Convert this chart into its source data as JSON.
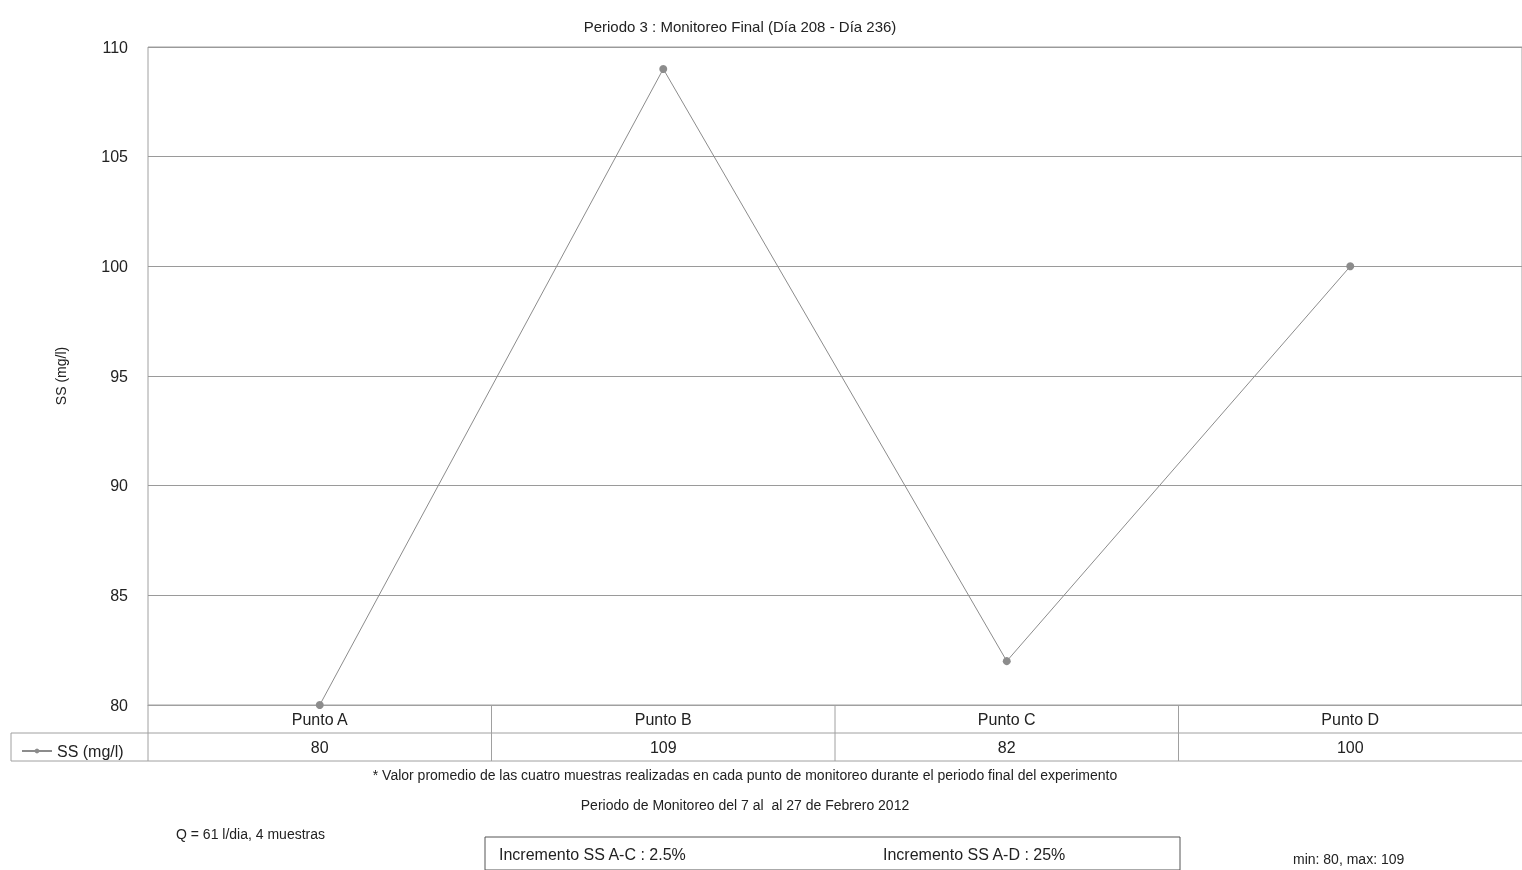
{
  "chart_data": {
    "type": "line",
    "title": "Periodo 3 : Monitoreo Final (Día 208 - Día 236)",
    "ylabel": "SS (mg/l)",
    "categories": [
      "Punto A",
      "Punto B",
      "Punto C",
      "Punto D"
    ],
    "series": [
      {
        "name": "SS (mg/l)",
        "color": "#8c8c8c",
        "values": [
          80,
          109,
          82,
          100
        ]
      }
    ],
    "ylim": [
      80,
      110
    ],
    "yticks": [
      80,
      85,
      90,
      95,
      100,
      105,
      110
    ],
    "grid": "y",
    "marker": "circle",
    "line_style": "solid",
    "data_labels": true,
    "legend": "bottom left",
    "annotations": [
      "* Valor promedio de las cuatro muestras realizadas en cada punto de monitoreo durante el periodo final del experimento",
      "Periodo de Monitoreo del 7 al  al 27 de Febrero 2012",
      "Q = 61 l/dia, 4 muestras",
      "Incremento SS A-C : 2.5%",
      "Incremento SS A-D : 25%",
      "min: 80, max: 109"
    ]
  }
}
